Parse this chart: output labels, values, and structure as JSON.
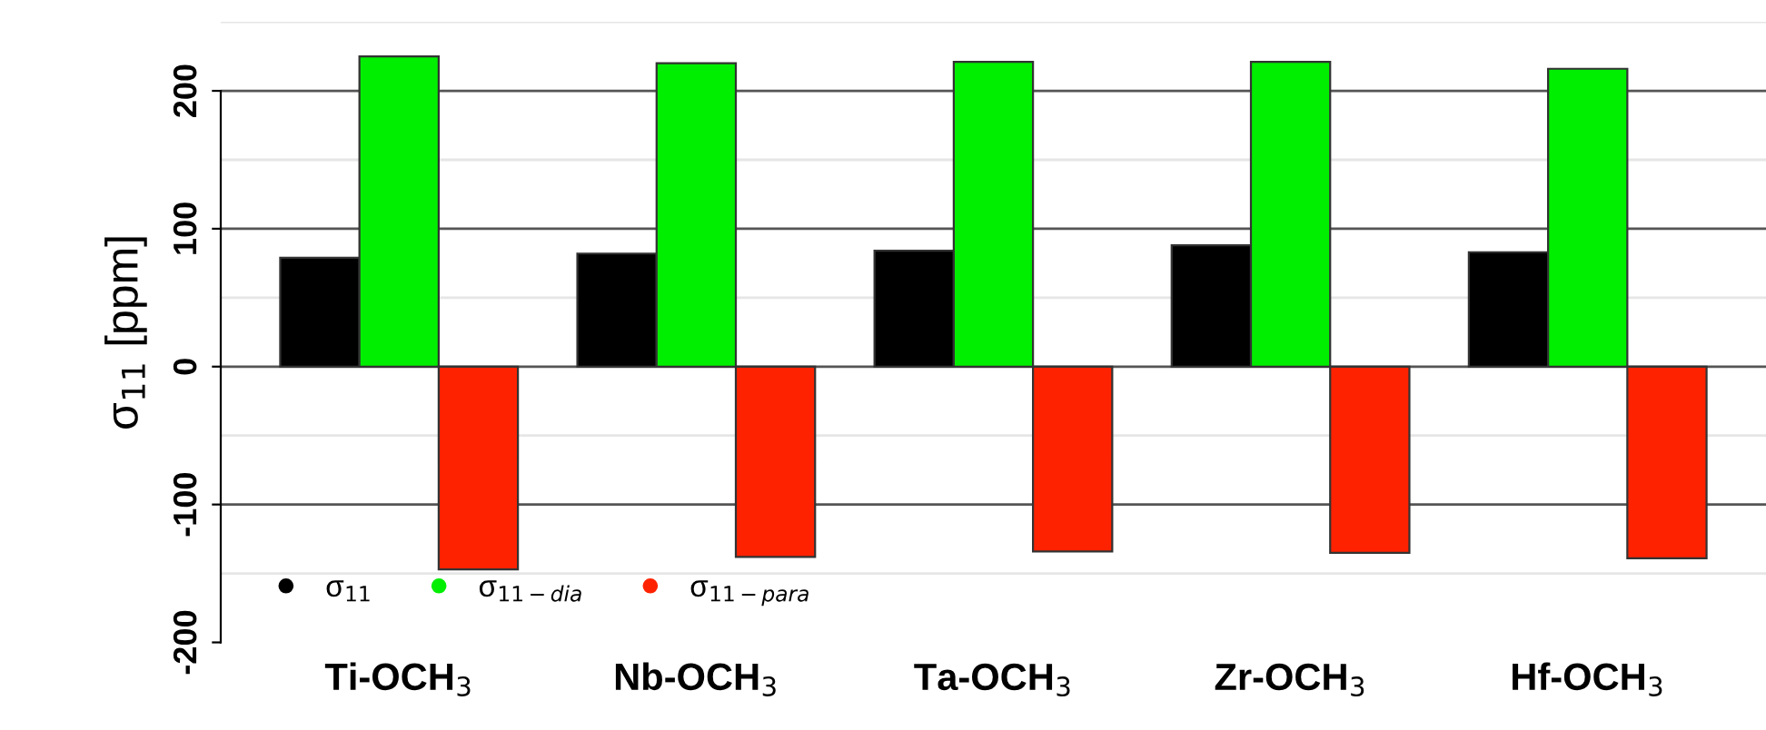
{
  "chart_data": {
    "type": "bar",
    "ylabel": "σ$_{11}$ [ppm]",
    "categories": [
      "Ti-OCH$_{3}$",
      "Nb-OCH$_{3}$",
      "Ta-OCH$_{3}$",
      "Zr-OCH$_{3}$",
      "Hf-OCH$_{3}$"
    ],
    "series": [
      {
        "name": "σ$_{11}$",
        "color": "#000000",
        "values": [
          79,
          82,
          84,
          88,
          83
        ]
      },
      {
        "name": "σ$_{11−dia}$",
        "color": "#00ee00",
        "values": [
          225,
          220,
          221,
          221,
          216
        ]
      },
      {
        "name": "σ$_{11−para}$",
        "color": "#ff2200",
        "values": [
          -147,
          -138,
          -134,
          -135,
          -139
        ]
      }
    ],
    "ylim": [
      -200,
      250
    ],
    "yticks": [
      -200,
      -100,
      0,
      100,
      200
    ],
    "grid": "y",
    "legend": "bottom left",
    "marker": "circle"
  }
}
